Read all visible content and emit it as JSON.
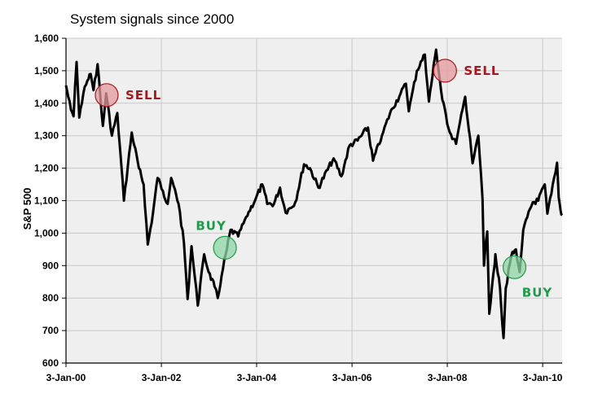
{
  "chart_data": {
    "type": "line",
    "title": "System signals since 2000",
    "xlabel": "",
    "ylabel": "S&P 500",
    "grid": true,
    "xlim": [
      "2000-01-03",
      "2010-06-01"
    ],
    "ylim": [
      600,
      1600
    ],
    "y_ticks": [
      600,
      700,
      800,
      900,
      1000,
      1100,
      1200,
      1300,
      1400,
      1500,
      1600
    ],
    "y_tick_labels": [
      "600",
      "700",
      "800",
      "900",
      "1,000",
      "1,100",
      "1,200",
      "1,300",
      "1,400",
      "1,500",
      "1,600"
    ],
    "x_ticks": [
      "2000-01-03",
      "2002-01-03",
      "2004-01-03",
      "2006-01-03",
      "2008-01-03",
      "2010-01-03"
    ],
    "x_tick_labels": [
      "3-Jan-00",
      "3-Jan-02",
      "3-Jan-04",
      "3-Jan-06",
      "3-Jan-08",
      "3-Jan-10"
    ],
    "series": [
      {
        "color": "#000000",
        "points": [
          [
            "2000-01-03",
            1455
          ],
          [
            "2000-01-20",
            1420
          ],
          [
            "2000-02-10",
            1380
          ],
          [
            "2000-03-01",
            1360
          ],
          [
            "2000-03-24",
            1527
          ],
          [
            "2000-04-14",
            1356
          ],
          [
            "2000-05-15",
            1430
          ],
          [
            "2000-06-15",
            1470
          ],
          [
            "2000-07-10",
            1490
          ],
          [
            "2000-08-01",
            1440
          ],
          [
            "2000-09-01",
            1520
          ],
          [
            "2000-10-12",
            1330
          ],
          [
            "2000-11-06",
            1430
          ],
          [
            "2000-12-20",
            1300
          ],
          [
            "2001-01-30",
            1370
          ],
          [
            "2001-03-22",
            1100
          ],
          [
            "2001-05-21",
            1310
          ],
          [
            "2001-07-15",
            1200
          ],
          [
            "2001-08-20",
            1150
          ],
          [
            "2001-09-21",
            965
          ],
          [
            "2001-10-30",
            1060
          ],
          [
            "2001-12-05",
            1170
          ],
          [
            "2002-01-15",
            1130
          ],
          [
            "2002-02-20",
            1090
          ],
          [
            "2002-03-19",
            1170
          ],
          [
            "2002-05-15",
            1090
          ],
          [
            "2002-06-25",
            970
          ],
          [
            "2002-07-23",
            797
          ],
          [
            "2002-08-22",
            960
          ],
          [
            "2002-09-15",
            870
          ],
          [
            "2002-10-09",
            777
          ],
          [
            "2002-11-27",
            935
          ],
          [
            "2002-12-31",
            880
          ],
          [
            "2003-02-15",
            835
          ],
          [
            "2003-03-11",
            800
          ],
          [
            "2003-04-10",
            870
          ],
          [
            "2003-05-20",
            950
          ],
          [
            "2003-06-17",
            1010
          ],
          [
            "2003-08-15",
            990
          ],
          [
            "2003-10-15",
            1050
          ],
          [
            "2003-12-31",
            1110
          ],
          [
            "2004-02-15",
            1150
          ],
          [
            "2004-03-24",
            1090
          ],
          [
            "2004-05-15",
            1090
          ],
          [
            "2004-06-30",
            1140
          ],
          [
            "2004-08-12",
            1063
          ],
          [
            "2004-10-25",
            1095
          ],
          [
            "2004-12-31",
            1212
          ],
          [
            "2005-02-15",
            1200
          ],
          [
            "2005-04-20",
            1140
          ],
          [
            "2005-06-30",
            1195
          ],
          [
            "2005-08-15",
            1230
          ],
          [
            "2005-10-13",
            1175
          ],
          [
            "2005-12-15",
            1270
          ],
          [
            "2006-02-15",
            1285
          ],
          [
            "2006-05-05",
            1325
          ],
          [
            "2006-06-13",
            1223
          ],
          [
            "2006-08-20",
            1300
          ],
          [
            "2006-10-31",
            1380
          ],
          [
            "2006-12-31",
            1420
          ],
          [
            "2007-02-20",
            1460
          ],
          [
            "2007-03-14",
            1375
          ],
          [
            "2007-05-15",
            1500
          ],
          [
            "2007-07-15",
            1550
          ],
          [
            "2007-08-15",
            1405
          ],
          [
            "2007-10-09",
            1565
          ],
          [
            "2007-11-26",
            1410
          ],
          [
            "2008-01-22",
            1310
          ],
          [
            "2008-03-10",
            1275
          ],
          [
            "2008-05-19",
            1420
          ],
          [
            "2008-07-15",
            1215
          ],
          [
            "2008-08-28",
            1300
          ],
          [
            "2008-09-29",
            1105
          ],
          [
            "2008-10-10",
            900
          ],
          [
            "2008-11-04",
            1005
          ],
          [
            "2008-11-20",
            752
          ],
          [
            "2008-12-31",
            903
          ],
          [
            "2009-01-06",
            935
          ],
          [
            "2009-02-10",
            830
          ],
          [
            "2009-03-09",
            677
          ],
          [
            "2009-03-26",
            830
          ],
          [
            "2009-05-08",
            930
          ],
          [
            "2009-06-12",
            950
          ],
          [
            "2009-07-10",
            880
          ],
          [
            "2009-08-07",
            1010
          ],
          [
            "2009-10-19",
            1095
          ],
          [
            "2009-11-30",
            1100
          ],
          [
            "2010-01-19",
            1150
          ],
          [
            "2010-02-08",
            1060
          ],
          [
            "2010-03-31",
            1170
          ],
          [
            "2010-04-23",
            1217
          ],
          [
            "2010-05-06",
            1110
          ],
          [
            "2010-05-20",
            1070
          ],
          [
            "2010-06-01",
            1055
          ]
        ]
      }
    ],
    "annotations": [
      {
        "type": "SELL",
        "label": "SELL",
        "date": "2000-11-10",
        "value": 1425,
        "color": "#a4181e",
        "fill": "#e39a9c"
      },
      {
        "type": "BUY",
        "label": "BUY",
        "date": "2003-05-05",
        "value": 955,
        "color": "#209a4a",
        "fill": "#8fd6a6"
      },
      {
        "type": "SELL",
        "label": "SELL",
        "date": "2007-12-17",
        "value": 1500,
        "color": "#a4181e",
        "fill": "#e39a9c"
      },
      {
        "type": "BUY",
        "label": "BUY",
        "date": "2009-06-01",
        "value": 895,
        "color": "#209a4a",
        "fill": "#8fd6a6"
      }
    ],
    "plot_background": "#efefef",
    "grid_color": "#c8c8c8"
  }
}
